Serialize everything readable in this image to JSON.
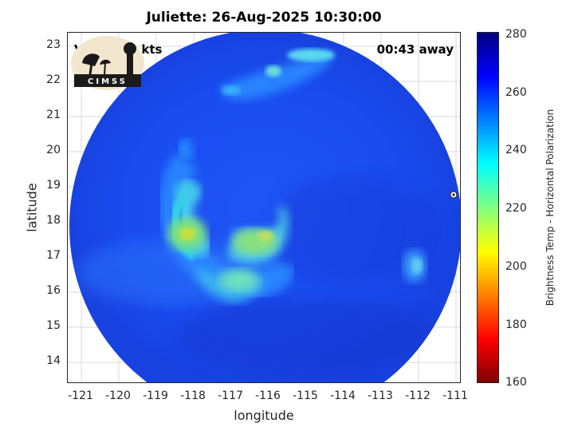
{
  "title": "Juliette: 26-Aug-2025 10:30:00",
  "vmax_label": "Vmax: 59 kts",
  "time_away_label": "00:43 away",
  "logo_text": "CIMSS",
  "map": {
    "xlabel": "longitude",
    "ylabel": "latitude",
    "x_ticks": [
      "-121",
      "-120",
      "-119",
      "-118",
      "-117",
      "-116",
      "-115",
      "-114",
      "-113",
      "-112",
      "-111"
    ],
    "y_ticks": [
      "23",
      "22",
      "21",
      "20",
      "19",
      "18",
      "17",
      "16",
      "15",
      "14"
    ],
    "xlim": [
      -121.05,
      -110.6
    ],
    "ylim": [
      13.45,
      23.45
    ],
    "storm_center": {
      "lon": -116.2,
      "lat": 17.9
    },
    "center_symbol_position": {
      "lon": -110.7,
      "lat": 18.8
    }
  },
  "colorbar": {
    "label": "Brightness Temp - Horizontal Polarization",
    "ticks": [
      "280",
      "260",
      "240",
      "220",
      "200",
      "180",
      "160"
    ],
    "range": [
      160,
      280
    ],
    "colors": [
      "#800000",
      "#ff0000",
      "#ff8000",
      "#ffff00",
      "#80ff80",
      "#00ffff",
      "#0080ff",
      "#0000ff",
      "#000080"
    ]
  }
}
